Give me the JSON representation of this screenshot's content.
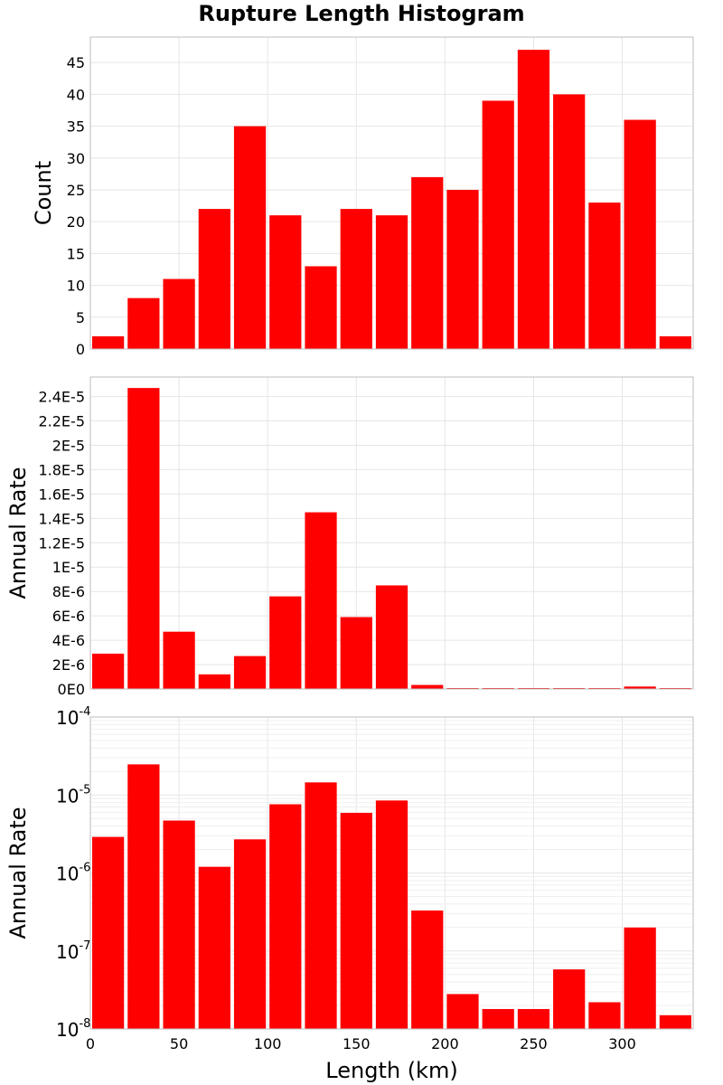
{
  "title": "Rupture Length Histogram",
  "colors": {
    "bar": "#ff0000",
    "background": "#ffffff"
  },
  "chart_data": [
    {
      "type": "bar",
      "scale": "linear",
      "title": "Rupture Length Histogram",
      "xlabel": "",
      "ylabel": "Count",
      "xlim": [
        0,
        340
      ],
      "ylim": [
        0,
        49
      ],
      "grid": true,
      "bin_width": 20,
      "x": [
        10,
        30,
        50,
        70,
        90,
        110,
        130,
        150,
        170,
        190,
        210,
        230,
        250,
        270,
        290,
        310,
        330
      ],
      "values": [
        2,
        8,
        11,
        22,
        35,
        21,
        13,
        22,
        21,
        27,
        25,
        39,
        47,
        40,
        23,
        36,
        2
      ],
      "y_ticks": [
        0,
        5,
        10,
        15,
        20,
        25,
        30,
        35,
        40,
        45
      ],
      "y_tick_labels": [
        "0",
        "5",
        "10",
        "15",
        "20",
        "25",
        "30",
        "35",
        "40",
        "45"
      ]
    },
    {
      "type": "bar",
      "scale": "linear",
      "xlabel": "",
      "ylabel": "Annual Rate",
      "xlim": [
        0,
        340
      ],
      "ylim": [
        0,
        2.56e-05
      ],
      "grid": true,
      "bin_width": 20,
      "x": [
        10,
        30,
        50,
        70,
        90,
        110,
        130,
        150,
        170,
        190,
        210,
        230,
        250,
        270,
        290,
        310,
        330
      ],
      "values": [
        2.9e-06,
        2.47e-05,
        4.7e-06,
        1.2e-06,
        2.7e-06,
        7.6e-06,
        1.45e-05,
        5.9e-06,
        8.5e-06,
        3.3e-07,
        2.8e-08,
        1.8e-08,
        1.8e-08,
        5.8e-08,
        2.2e-08,
        2e-07,
        1.5e-08
      ],
      "y_ticks": [
        0,
        2e-06,
        4e-06,
        6e-06,
        8e-06,
        1e-05,
        1.2e-05,
        1.4e-05,
        1.6e-05,
        1.8e-05,
        2e-05,
        2.2e-05,
        2.4e-05
      ],
      "y_tick_labels": [
        "0E0",
        "2E-6",
        "4E-6",
        "6E-6",
        "8E-6",
        "1E-5",
        "1.2E-5",
        "1.4E-5",
        "1.6E-5",
        "1.8E-5",
        "2E-5",
        "2.2E-5",
        "2.4E-5"
      ]
    },
    {
      "type": "bar",
      "scale": "log",
      "xlabel": "Length (km)",
      "ylabel": "Annual Rate",
      "xlim": [
        0,
        340
      ],
      "ylim": [
        1e-08,
        0.0001
      ],
      "grid": true,
      "bin_width": 20,
      "x": [
        10,
        30,
        50,
        70,
        90,
        110,
        130,
        150,
        170,
        190,
        210,
        230,
        250,
        270,
        290,
        310,
        330
      ],
      "values": [
        2.9e-06,
        2.47e-05,
        4.7e-06,
        1.2e-06,
        2.7e-06,
        7.6e-06,
        1.45e-05,
        5.9e-06,
        8.5e-06,
        3.3e-07,
        2.8e-08,
        1.8e-08,
        1.8e-08,
        5.8e-08,
        2.2e-08,
        2e-07,
        1.5e-08
      ],
      "y_ticks": [
        1e-08,
        1e-07,
        1e-06,
        1e-05,
        0.0001
      ],
      "y_tick_labels": [
        {
          "base": "10",
          "exp": "-8"
        },
        {
          "base": "10",
          "exp": "-7"
        },
        {
          "base": "10",
          "exp": "-6"
        },
        {
          "base": "10",
          "exp": "-5"
        },
        {
          "base": "10",
          "exp": "-4"
        }
      ],
      "x_ticks": [
        0,
        50,
        100,
        150,
        200,
        250,
        300
      ],
      "x_tick_labels": [
        "0",
        "50",
        "100",
        "150",
        "200",
        "250",
        "300"
      ]
    }
  ]
}
